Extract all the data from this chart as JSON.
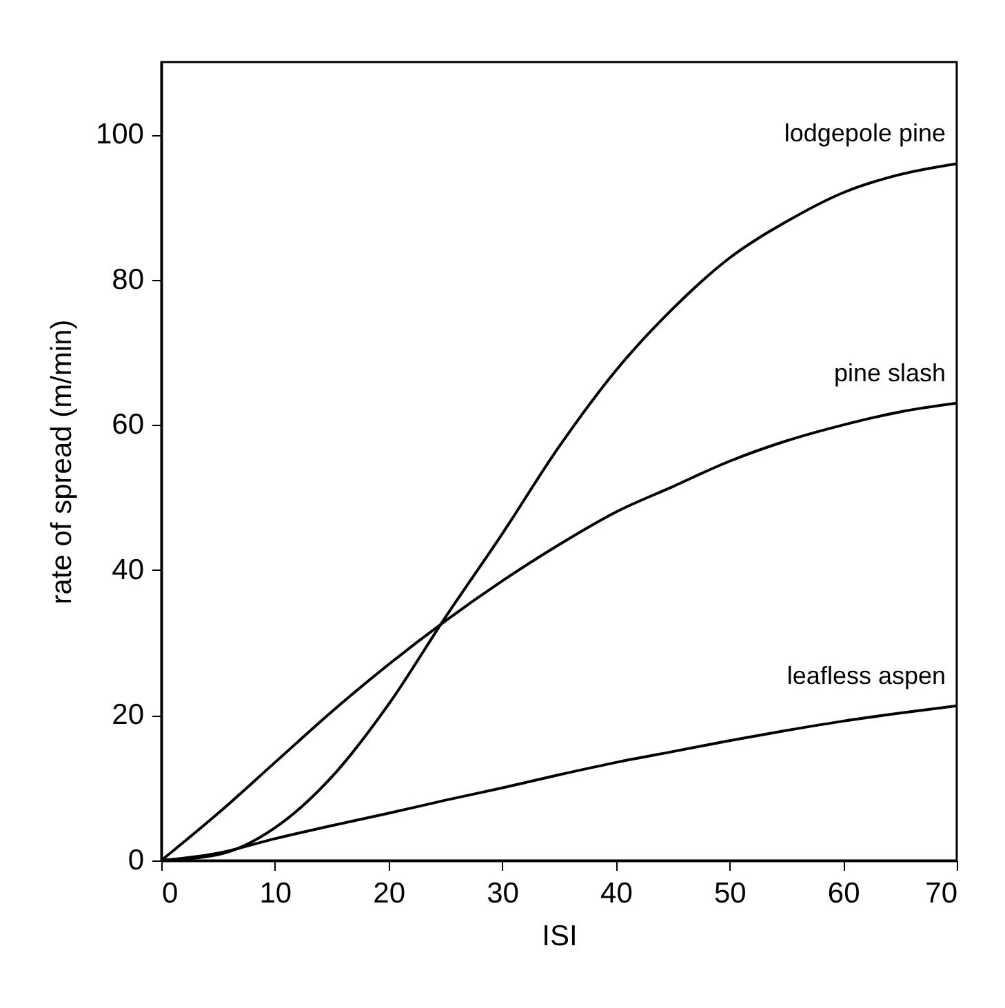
{
  "chart_data": {
    "type": "line",
    "xlabel": "ISI",
    "ylabel": "rate of spread (m/min)",
    "xlim": [
      0,
      70
    ],
    "xticks": [
      0,
      10,
      20,
      30,
      40,
      50,
      60,
      70
    ],
    "ylim": [
      0,
      110
    ],
    "yticks": [
      0,
      20,
      40,
      60,
      80,
      100
    ],
    "grid": false,
    "legend": false,
    "x": [
      0,
      5,
      10,
      15,
      20,
      25,
      30,
      35,
      40,
      45,
      50,
      55,
      60,
      65,
      70
    ],
    "series": [
      {
        "name": "lodgepole pine",
        "color": "#000000",
        "values": [
          0,
          0.8,
          4.5,
          11.5,
          21.5,
          33.5,
          45,
          57,
          67.5,
          76,
          83,
          88,
          92,
          94.5,
          96
        ]
      },
      {
        "name": "pine slash",
        "color": "#000000",
        "values": [
          0,
          6.5,
          13.5,
          20.5,
          27,
          33,
          38.5,
          43.5,
          48,
          51.5,
          55,
          57.8,
          60,
          61.8,
          63
        ]
      },
      {
        "name": "leafless aspen",
        "color": "#000000",
        "values": [
          0,
          1,
          3,
          4.8,
          6.5,
          8.3,
          10,
          11.8,
          13.5,
          15,
          16.5,
          17.9,
          19.2,
          20.3,
          21.3
        ]
      }
    ]
  }
}
